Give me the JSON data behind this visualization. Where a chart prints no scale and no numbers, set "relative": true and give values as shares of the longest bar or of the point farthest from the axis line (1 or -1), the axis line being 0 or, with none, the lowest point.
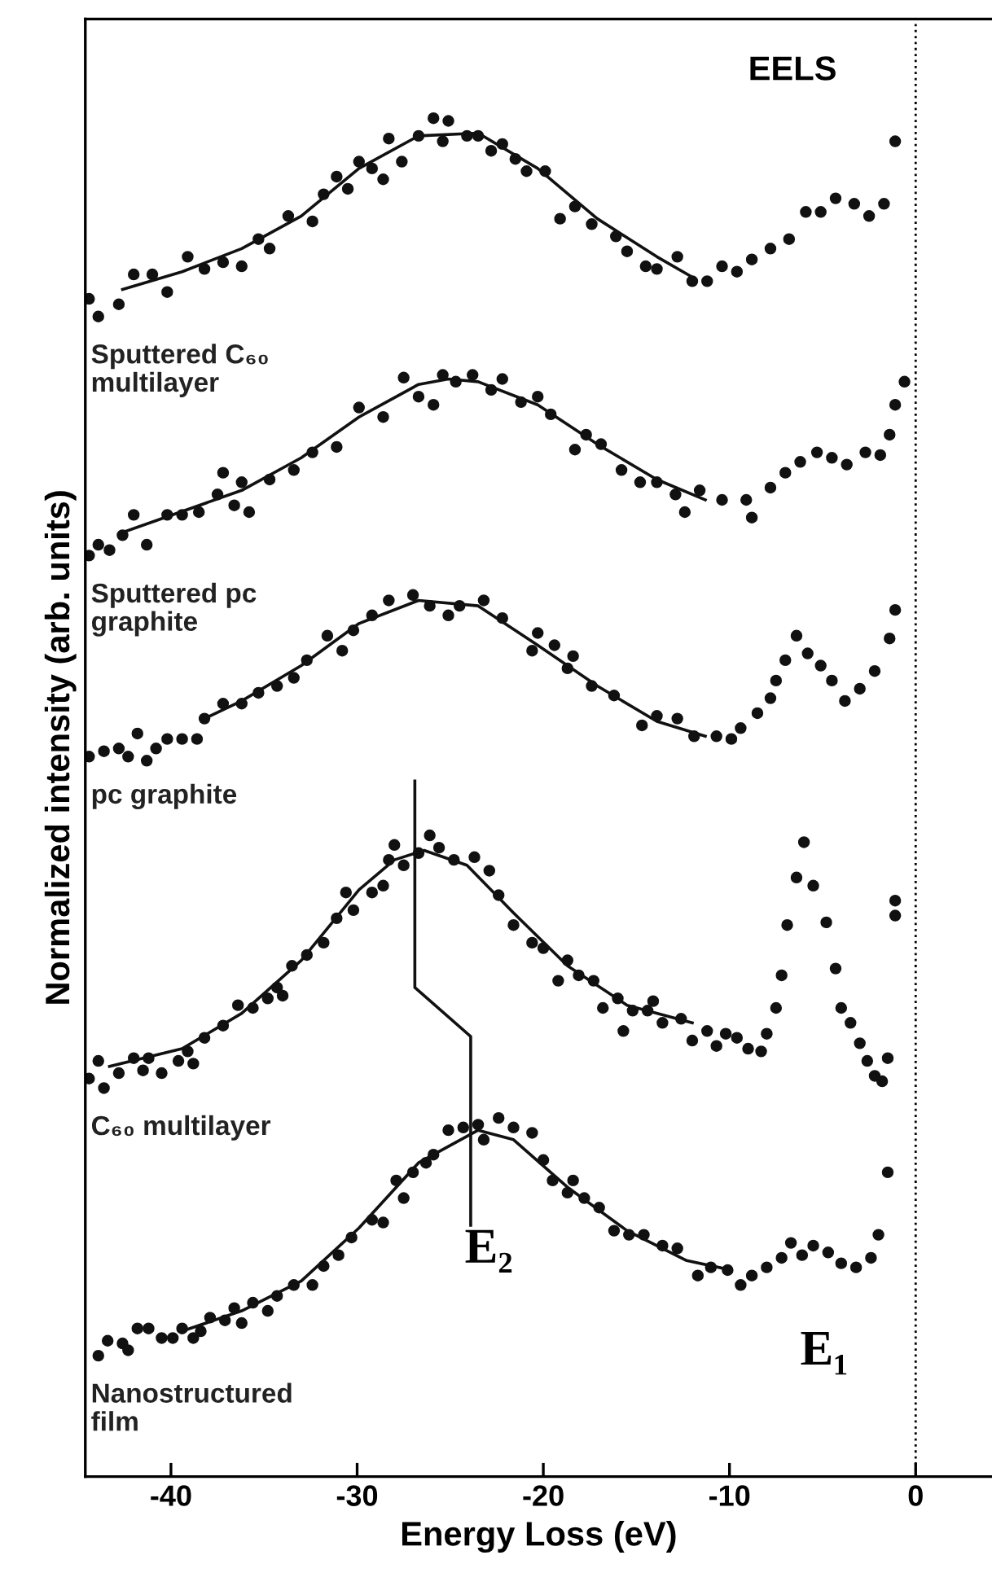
{
  "chart_data": {
    "type": "scatter",
    "relative": true,
    "title": "EELS",
    "xlabel": "Energy Loss (eV)",
    "ylabel": "Normalized intensity (arb. units)",
    "xlim": [
      -44.6,
      4.1
    ],
    "xticks": [
      -40,
      -30,
      -20,
      -10,
      0
    ],
    "grid": false,
    "marker": "circle",
    "ref_lines": [
      {
        "axis": "x",
        "value": 0,
        "color": "#000000",
        "line_style": "dotted"
      }
    ],
    "annotations": [
      "E₂",
      "E₁"
    ],
    "series": [
      {
        "name": "Sputtered C₆₀\nmultilayer",
        "color": "#111111",
        "x": [
          -44.4,
          -43.9,
          -42.8,
          -42.0,
          -41.0,
          -40.2,
          -39.1,
          -38.2,
          -37.2,
          -36.2,
          -35.3,
          -34.7,
          -33.7,
          -32.4,
          -31.8,
          -31.1,
          -30.5,
          -29.9,
          -29.2,
          -28.6,
          -28.3,
          -27.6,
          -26.7,
          -25.9,
          -25.4,
          -25.1,
          -24.1,
          -23.5,
          -22.8,
          -22.2,
          -21.5,
          -20.9,
          -19.9,
          -19.1,
          -18.3,
          -17.4,
          -16.1,
          -15.5,
          -14.5,
          -13.9,
          -12.8,
          -12.0,
          -11.2,
          -10.4,
          -9.6,
          -8.8,
          -7.8,
          -6.8,
          -5.9,
          -5.1,
          -4.3,
          -3.3,
          -2.5,
          -1.7,
          -1.1
        ],
        "values": [
          0.867,
          0.854,
          0.863,
          0.885,
          0.885,
          0.872,
          0.898,
          0.889,
          0.894,
          0.891,
          0.911,
          0.904,
          0.928,
          0.924,
          0.944,
          0.957,
          0.948,
          0.968,
          0.963,
          0.955,
          0.985,
          0.968,
          0.987,
          1.0,
          0.983,
          0.998,
          0.987,
          0.987,
          0.976,
          0.981,
          0.97,
          0.961,
          0.961,
          0.926,
          0.935,
          0.922,
          0.913,
          0.902,
          0.891,
          0.889,
          0.898,
          0.88,
          0.88,
          0.891,
          0.887,
          0.896,
          0.904,
          0.911,
          0.931,
          0.931,
          0.941,
          0.937,
          0.928,
          0.937,
          0.983
        ]
      },
      {
        "type": "line",
        "marker": "none",
        "color": "#111111",
        "x": [
          -42.6,
          -39.4,
          -36.2,
          -33.0,
          -29.9,
          -26.7,
          -23.5,
          -20.3,
          -17.1,
          -13.9,
          -12.0
        ],
        "values": [
          0.874,
          0.887,
          0.904,
          0.928,
          0.963,
          0.987,
          0.989,
          0.963,
          0.926,
          0.898,
          0.883
        ]
      },
      {
        "name": "Sputtered pc\ngraphite",
        "color": "#111111",
        "x": [
          -44.4,
          -43.9,
          -43.3,
          -42.6,
          -42.0,
          -41.3,
          -40.2,
          -39.4,
          -38.5,
          -37.5,
          -36.6,
          -35.8,
          -37.2,
          -36.2,
          -34.7,
          -33.4,
          -32.4,
          -31.1,
          -29.9,
          -28.6,
          -27.5,
          -26.7,
          -25.9,
          -25.4,
          -24.7,
          -23.8,
          -22.8,
          -22.2,
          -21.2,
          -20.3,
          -19.6,
          -18.3,
          -17.7,
          -16.9,
          -15.8,
          -14.8,
          -13.9,
          -12.9,
          -12.4,
          -11.6,
          -10.4,
          -9.1,
          -8.8,
          -7.8,
          -7.0,
          -6.2,
          -5.3,
          -4.5,
          -3.7,
          -2.7,
          -1.9,
          -1.4,
          -1.1,
          -0.6
        ],
        "values": [
          0.678,
          0.686,
          0.682,
          0.693,
          0.708,
          0.686,
          0.708,
          0.708,
          0.71,
          0.723,
          0.715,
          0.71,
          0.739,
          0.732,
          0.734,
          0.741,
          0.754,
          0.758,
          0.787,
          0.78,
          0.809,
          0.795,
          0.789,
          0.811,
          0.806,
          0.811,
          0.8,
          0.808,
          0.791,
          0.795,
          0.782,
          0.756,
          0.767,
          0.76,
          0.741,
          0.732,
          0.732,
          0.723,
          0.71,
          0.726,
          0.719,
          0.719,
          0.706,
          0.728,
          0.739,
          0.747,
          0.754,
          0.75,
          0.745,
          0.754,
          0.752,
          0.767,
          0.789,
          0.806
        ]
      },
      {
        "type": "line",
        "marker": "none",
        "color": "#111111",
        "x": [
          -42.6,
          -36.2,
          -33.0,
          -29.9,
          -26.7,
          -25.1,
          -23.5,
          -20.3,
          -17.1,
          -13.9,
          -11.3
        ],
        "values": [
          0.695,
          0.726,
          0.75,
          0.78,
          0.804,
          0.808,
          0.806,
          0.789,
          0.76,
          0.734,
          0.719
        ]
      },
      {
        "name": "pc graphite",
        "color": "#111111",
        "x": [
          -44.4,
          -43.6,
          -42.8,
          -42.3,
          -41.8,
          -41.3,
          -40.8,
          -40.2,
          -39.4,
          -38.6,
          -38.2,
          -37.2,
          -36.2,
          -35.3,
          -34.3,
          -33.4,
          -32.7,
          -31.6,
          -30.8,
          -30.2,
          -29.2,
          -28.3,
          -27.0,
          -26.1,
          -25.1,
          -24.5,
          -23.2,
          -22.2,
          -20.6,
          -20.3,
          -19.4,
          -18.7,
          -18.4,
          -17.4,
          -16.2,
          -14.7,
          -13.9,
          -12.8,
          -11.9,
          -10.7,
          -9.9,
          -9.4,
          -8.5,
          -7.8,
          -7.5,
          -7.0,
          -6.4,
          -5.8,
          -5.1,
          -4.5,
          -3.8,
          -3.0,
          -2.2,
          -1.4,
          -1.1
        ],
        "values": [
          0.53,
          0.534,
          0.536,
          0.53,
          0.547,
          0.527,
          0.536,
          0.543,
          0.543,
          0.543,
          0.558,
          0.569,
          0.569,
          0.577,
          0.582,
          0.588,
          0.601,
          0.619,
          0.608,
          0.623,
          0.634,
          0.645,
          0.649,
          0.641,
          0.634,
          0.641,
          0.645,
          0.632,
          0.608,
          0.621,
          0.612,
          0.595,
          0.604,
          0.582,
          0.575,
          0.553,
          0.56,
          0.558,
          0.545,
          0.545,
          0.543,
          0.551,
          0.562,
          0.573,
          0.586,
          0.601,
          0.619,
          0.606,
          0.597,
          0.586,
          0.571,
          0.58,
          0.593,
          0.617,
          0.638
        ]
      },
      {
        "type": "line",
        "marker": "none",
        "color": "#111111",
        "x": [
          -38.2,
          -36.2,
          -33.0,
          -29.9,
          -26.7,
          -23.5,
          -20.3,
          -17.1,
          -13.9,
          -11.3
        ],
        "values": [
          0.558,
          0.571,
          0.597,
          0.628,
          0.645,
          0.641,
          0.612,
          0.582,
          0.556,
          0.545
        ]
      },
      {
        "name": "C₆₀ multilayer",
        "color": "#111111",
        "x": [
          -44.4,
          -43.9,
          -43.6,
          -42.8,
          -42.0,
          -41.5,
          -41.2,
          -40.5,
          -39.6,
          -39.1,
          -38.8,
          -38.2,
          -37.2,
          -36.4,
          -35.6,
          -34.8,
          -34.3,
          -34.0,
          -33.5,
          -32.7,
          -31.8,
          -31.1,
          -30.6,
          -30.2,
          -29.2,
          -28.6,
          -28.3,
          -28.0,
          -27.5,
          -26.7,
          -26.1,
          -25.6,
          -24.8,
          -23.7,
          -22.9,
          -22.4,
          -21.6,
          -20.6,
          -20.0,
          -19.2,
          -18.7,
          -18.1,
          -17.3,
          -16.8,
          -16.0,
          -15.7,
          -15.2,
          -14.4,
          -14.1,
          -13.6,
          -12.6,
          -12.0,
          -11.2,
          -10.7,
          -10.2,
          -9.6,
          -9.0,
          -8.3,
          -8.0,
          -7.5,
          -7.2,
          -6.9,
          -6.4,
          -6.0,
          -5.5,
          -4.8,
          -4.3,
          -4.0,
          -3.5,
          -3.0,
          -2.6,
          -2.2,
          -1.8,
          -1.5,
          -1.1,
          -1.1
        ],
        "values": [
          0.293,
          0.306,
          0.286,
          0.297,
          0.308,
          0.299,
          0.308,
          0.297,
          0.306,
          0.313,
          0.304,
          0.323,
          0.332,
          0.347,
          0.345,
          0.352,
          0.36,
          0.354,
          0.376,
          0.384,
          0.393,
          0.411,
          0.43,
          0.417,
          0.43,
          0.435,
          0.454,
          0.465,
          0.45,
          0.459,
          0.472,
          0.463,
          0.454,
          0.456,
          0.446,
          0.428,
          0.406,
          0.393,
          0.389,
          0.365,
          0.38,
          0.369,
          0.365,
          0.345,
          0.352,
          0.328,
          0.343,
          0.343,
          0.35,
          0.334,
          0.337,
          0.321,
          0.328,
          0.317,
          0.326,
          0.323,
          0.315,
          0.313,
          0.326,
          0.345,
          0.369,
          0.406,
          0.441,
          0.467,
          0.435,
          0.408,
          0.374,
          0.345,
          0.334,
          0.319,
          0.306,
          0.295,
          0.291,
          0.308,
          0.413,
          0.424
        ]
      },
      {
        "type": "line",
        "marker": "none",
        "color": "#111111",
        "x": [
          -43.3,
          -39.4,
          -36.2,
          -33.0,
          -29.9,
          -28.0,
          -26.4,
          -24.1,
          -21.6,
          -18.7,
          -15.5,
          -12.0
        ],
        "values": [
          0.302,
          0.315,
          0.341,
          0.38,
          0.432,
          0.454,
          0.461,
          0.45,
          0.415,
          0.376,
          0.347,
          0.334
        ]
      },
      {
        "name": "Nanostructured\nfilm",
        "color": "#111111",
        "x": [
          -43.9,
          -43.4,
          -42.6,
          -42.3,
          -41.8,
          -41.2,
          -40.5,
          -39.9,
          -39.4,
          -38.8,
          -38.4,
          -37.9,
          -37.1,
          -36.6,
          -36.2,
          -35.6,
          -34.8,
          -34.3,
          -33.4,
          -32.4,
          -31.8,
          -31.0,
          -30.3,
          -29.2,
          -28.6,
          -27.9,
          -27.5,
          -27.0,
          -26.3,
          -25.9,
          -25.1,
          -24.3,
          -23.5,
          -23.2,
          -22.4,
          -21.6,
          -20.6,
          -20.0,
          -19.5,
          -18.7,
          -18.4,
          -17.8,
          -17.0,
          -16.2,
          -15.4,
          -14.6,
          -13.6,
          -12.8,
          -11.7,
          -11.0,
          -10.1,
          -9.4,
          -8.8,
          -8.0,
          -7.2,
          -6.7,
          -6.1,
          -5.5,
          -4.7,
          -4.0,
          -3.2,
          -2.4,
          -2.0,
          -1.5
        ],
        "values": [
          0.089,
          0.1,
          0.098,
          0.093,
          0.109,
          0.109,
          0.102,
          0.102,
          0.109,
          0.102,
          0.107,
          0.117,
          0.115,
          0.124,
          0.113,
          0.128,
          0.122,
          0.133,
          0.141,
          0.141,
          0.155,
          0.163,
          0.176,
          0.189,
          0.187,
          0.218,
          0.205,
          0.224,
          0.231,
          0.237,
          0.255,
          0.257,
          0.259,
          0.248,
          0.264,
          0.257,
          0.253,
          0.233,
          0.218,
          0.209,
          0.218,
          0.205,
          0.198,
          0.181,
          0.178,
          0.178,
          0.17,
          0.168,
          0.148,
          0.154,
          0.152,
          0.141,
          0.148,
          0.154,
          0.161,
          0.172,
          0.163,
          0.17,
          0.165,
          0.157,
          0.154,
          0.161,
          0.178,
          0.224
        ]
      },
      {
        "type": "line",
        "marker": "none",
        "color": "#111111",
        "x": [
          -39.4,
          -36.2,
          -33.0,
          -29.9,
          -26.7,
          -23.5,
          -21.6,
          -18.7,
          -15.5,
          -12.3,
          -9.9
        ],
        "values": [
          0.107,
          0.122,
          0.144,
          0.183,
          0.231,
          0.255,
          0.248,
          0.213,
          0.181,
          0.159,
          0.152
        ]
      },
      {
        "type": "line",
        "marker": "none",
        "color": "#111111",
        "x": [
          -26.9,
          -26.9,
          -23.9,
          -23.9
        ],
        "values": [
          0.512,
          0.36,
          0.324,
          0.185
        ]
      }
    ]
  }
}
